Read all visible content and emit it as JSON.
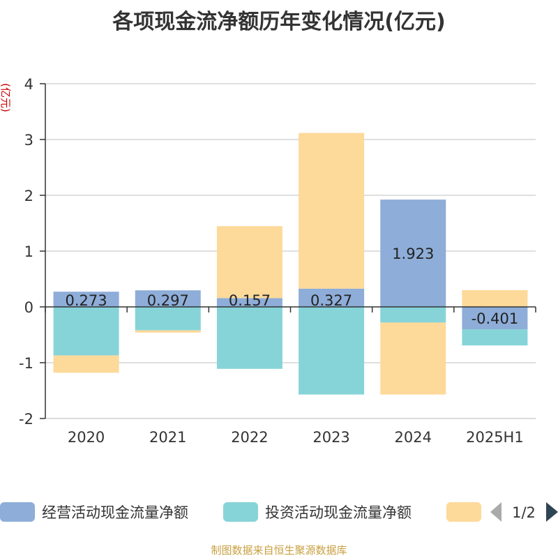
{
  "chart_data": {
    "type": "bar",
    "stacked": true,
    "title": "各项现金流净额历年变化情况(亿元)",
    "ylabel": "(亿元)",
    "xlabel": "",
    "categories": [
      "2020",
      "2021",
      "2022",
      "2023",
      "2024",
      "2025H1"
    ],
    "ylim": [
      -2,
      4
    ],
    "yticks": [
      -2,
      -1,
      0,
      1,
      2,
      3,
      4
    ],
    "grid": true,
    "series": [
      {
        "name": "经营活动现金流量净额",
        "color": "#8eadd8",
        "values": [
          0.273,
          0.297,
          0.157,
          0.327,
          1.923,
          -0.401
        ],
        "labels": [
          "0.273",
          "0.297",
          "0.157",
          "0.327",
          "1.923",
          "-0.401"
        ]
      },
      {
        "name": "投资活动现金流量净额",
        "color": "#86d4d8",
        "values": [
          -0.87,
          -0.42,
          -1.11,
          -1.57,
          -0.28,
          -0.29
        ]
      },
      {
        "name": "",
        "color": "#fdd99a",
        "values": [
          -0.31,
          -0.04,
          1.29,
          2.79,
          -1.29,
          0.3
        ]
      }
    ],
    "legend": {
      "position": "bottom",
      "page": "1/2"
    },
    "source": "制图数据来自恒生聚源数据库"
  }
}
